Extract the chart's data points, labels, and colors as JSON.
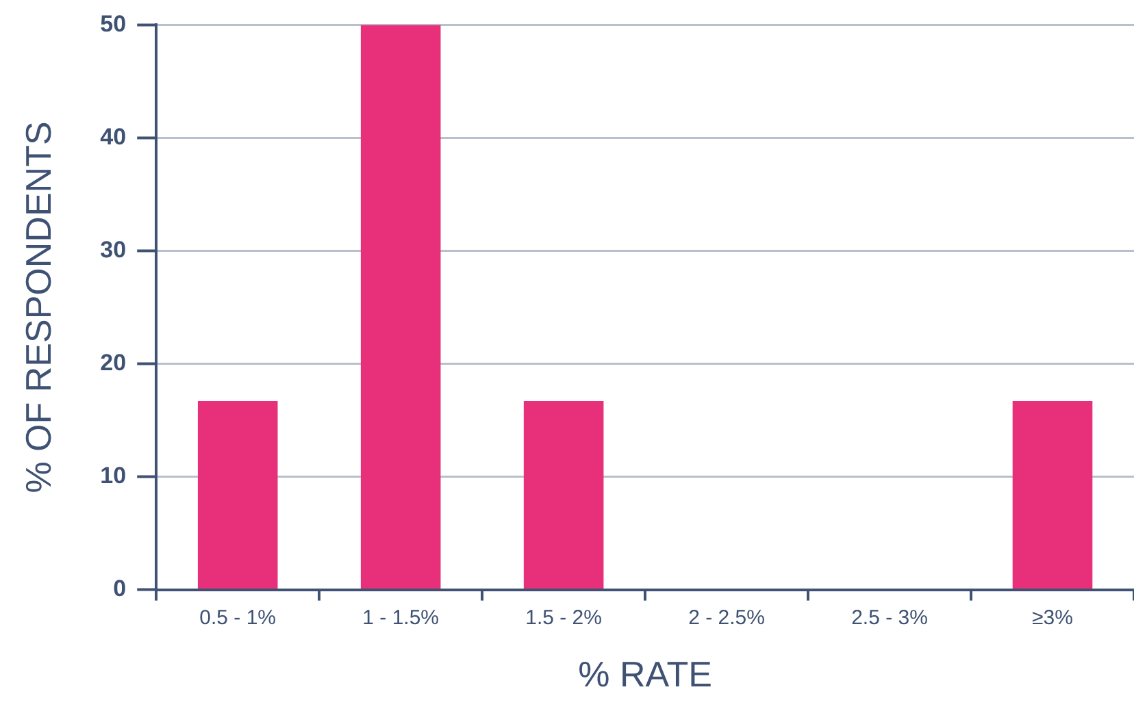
{
  "chart_data": {
    "type": "bar",
    "xlabel": "% RATE",
    "ylabel": "% OF RESPONDENTS",
    "categories": [
      "0.5 - 1%",
      "1 - 1.5%",
      "1.5 - 2%",
      "2 - 2.5%",
      "2.5 - 3%",
      "≥3%"
    ],
    "values": [
      16.7,
      50,
      16.7,
      0,
      0,
      16.7
    ],
    "color": "#e8307a",
    "ylim": [
      0,
      50
    ],
    "yticks": [
      0,
      10,
      20,
      30,
      40,
      50
    ],
    "grid": "y"
  }
}
